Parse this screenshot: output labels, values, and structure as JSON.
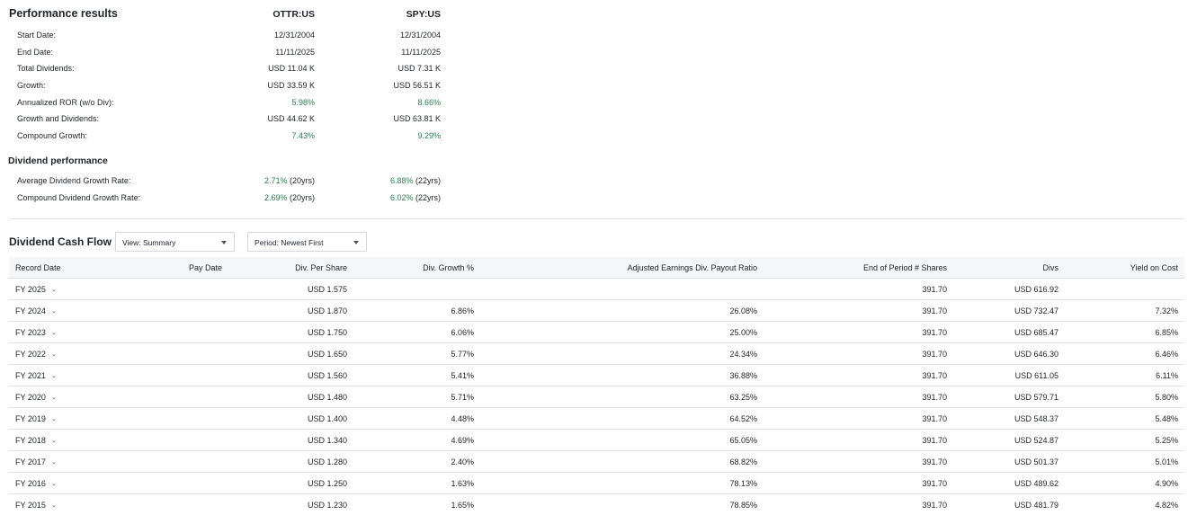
{
  "performance": {
    "title": "Performance results",
    "columns": [
      "OTTR:US",
      "SPY:US"
    ],
    "rows": [
      {
        "label": "Start Date:",
        "values": [
          "12/31/2004",
          "12/31/2004"
        ],
        "green": false
      },
      {
        "label": "End Date:",
        "values": [
          "11/11/2025",
          "11/11/2025"
        ],
        "green": false
      },
      {
        "label": "Total Dividends:",
        "values": [
          "USD 11.04 K",
          "USD 7.31 K"
        ],
        "green": false
      },
      {
        "label": "Growth:",
        "values": [
          "USD 33.59 K",
          "USD 56.51 K"
        ],
        "green": false
      },
      {
        "label": "Annualized ROR (w/o Div):",
        "values": [
          "5.98%",
          "8.66%"
        ],
        "green": true
      },
      {
        "label": "Growth and Dividends:",
        "values": [
          "USD 44.62 K",
          "USD 63.81 K"
        ],
        "green": false
      },
      {
        "label": "Compound Growth:",
        "values": [
          "7.43%",
          "9.29%"
        ],
        "green": true
      }
    ]
  },
  "dividend_performance": {
    "title": "Dividend performance",
    "rows": [
      {
        "label": "Average Dividend Growth Rate:",
        "values": [
          {
            "pct": "2.71%",
            "yrs": " (20yrs)"
          },
          {
            "pct": "6.88%",
            "yrs": " (22yrs)"
          }
        ]
      },
      {
        "label": "Compound Dividend Growth Rate:",
        "values": [
          {
            "pct": "2.69%",
            "yrs": " (20yrs)"
          },
          {
            "pct": "6.02%",
            "yrs": " (22yrs)"
          }
        ]
      }
    ]
  },
  "cash_flow": {
    "title": "Dividend Cash Flow",
    "view_dropdown": "View: Summary",
    "period_dropdown": "Period: Newest First",
    "headers": {
      "record_date": "Record Date",
      "pay_date": "Pay Date",
      "div_per_share": "Div. Per Share",
      "div_growth": "Div. Growth %",
      "payout_ratio": "Adjusted Earnings Div. Payout Ratio",
      "shares": "End of Period # Shares",
      "divs": "Divs",
      "yield_on_cost": "Yield on Cost"
    },
    "rows": [
      {
        "record_date": "FY 2025",
        "pay_date": "",
        "div_per_share": "USD 1.575",
        "div_growth": "",
        "payout_ratio": "",
        "shares": "391.70",
        "divs": "USD 616.92",
        "yield_on_cost": ""
      },
      {
        "record_date": "FY 2024",
        "pay_date": "",
        "div_per_share": "USD 1.870",
        "div_growth": "6.86%",
        "payout_ratio": "26.08%",
        "shares": "391.70",
        "divs": "USD 732.47",
        "yield_on_cost": "7.32%"
      },
      {
        "record_date": "FY 2023",
        "pay_date": "",
        "div_per_share": "USD 1.750",
        "div_growth": "6.06%",
        "payout_ratio": "25.00%",
        "shares": "391.70",
        "divs": "USD 685.47",
        "yield_on_cost": "6.85%"
      },
      {
        "record_date": "FY 2022",
        "pay_date": "",
        "div_per_share": "USD 1.650",
        "div_growth": "5.77%",
        "payout_ratio": "24.34%",
        "shares": "391.70",
        "divs": "USD 646.30",
        "yield_on_cost": "6.46%"
      },
      {
        "record_date": "FY 2021",
        "pay_date": "",
        "div_per_share": "USD 1.560",
        "div_growth": "5.41%",
        "payout_ratio": "36.88%",
        "shares": "391.70",
        "divs": "USD 611.05",
        "yield_on_cost": "6.11%"
      },
      {
        "record_date": "FY 2020",
        "pay_date": "",
        "div_per_share": "USD 1.480",
        "div_growth": "5.71%",
        "payout_ratio": "63.25%",
        "shares": "391.70",
        "divs": "USD 579.71",
        "yield_on_cost": "5.80%"
      },
      {
        "record_date": "FY 2019",
        "pay_date": "",
        "div_per_share": "USD 1.400",
        "div_growth": "4.48%",
        "payout_ratio": "64.52%",
        "shares": "391.70",
        "divs": "USD 548.37",
        "yield_on_cost": "5.48%"
      },
      {
        "record_date": "FY 2018",
        "pay_date": "",
        "div_per_share": "USD 1.340",
        "div_growth": "4.69%",
        "payout_ratio": "65.05%",
        "shares": "391.70",
        "divs": "USD 524.87",
        "yield_on_cost": "5.25%"
      },
      {
        "record_date": "FY 2017",
        "pay_date": "",
        "div_per_share": "USD 1.280",
        "div_growth": "2.40%",
        "payout_ratio": "68.82%",
        "shares": "391.70",
        "divs": "USD 501.37",
        "yield_on_cost": "5.01%"
      },
      {
        "record_date": "FY 2016",
        "pay_date": "",
        "div_per_share": "USD 1.250",
        "div_growth": "1.63%",
        "payout_ratio": "78.13%",
        "shares": "391.70",
        "divs": "USD 489.62",
        "yield_on_cost": "4.90%"
      },
      {
        "record_date": "FY 2015",
        "pay_date": "",
        "div_per_share": "USD 1.230",
        "div_growth": "1.65%",
        "payout_ratio": "78.85%",
        "shares": "391.70",
        "divs": "USD 481.79",
        "yield_on_cost": "4.82%"
      }
    ]
  },
  "colors": {
    "positive_green": "#2e7d4f",
    "header_bg": "#f5f6f8",
    "border": "#dde0e5"
  }
}
